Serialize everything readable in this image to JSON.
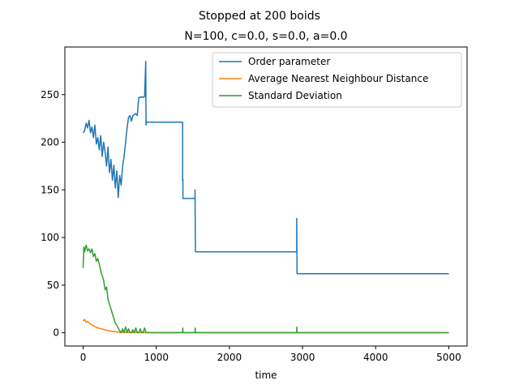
{
  "chart_data": {
    "type": "line",
    "suptitle": "Stopped at 200 boids",
    "title": "N=100, c=0.0, s=0.0, a=0.0",
    "xlabel": "time",
    "ylabel": "",
    "xlim": [
      -250,
      5250
    ],
    "ylim": [
      -14,
      300
    ],
    "xticks": [
      0,
      1000,
      2000,
      3000,
      4000,
      5000
    ],
    "yticks": [
      0,
      50,
      100,
      150,
      200,
      250
    ],
    "grid": false,
    "legend": "upper-right",
    "series": [
      {
        "name": "Order parameter",
        "color": "#1f77b4",
        "x": [
          0,
          20,
          40,
          60,
          80,
          100,
          120,
          140,
          160,
          180,
          200,
          220,
          240,
          260,
          280,
          300,
          320,
          340,
          360,
          380,
          400,
          420,
          440,
          460,
          480,
          500,
          520,
          540,
          560,
          580,
          600,
          620,
          640,
          660,
          680,
          700,
          720,
          740,
          760,
          780,
          800,
          820,
          840,
          855,
          860,
          865,
          870,
          1360,
          1360,
          1365,
          1365,
          1530,
          1530,
          1535,
          1535,
          2920,
          2920,
          2925,
          2925,
          5000
        ],
        "y": [
          210,
          212,
          220,
          215,
          223,
          210,
          216,
          205,
          218,
          198,
          205,
          192,
          207,
          185,
          200,
          190,
          175,
          195,
          168,
          182,
          160,
          176,
          152,
          170,
          142,
          165,
          155,
          175,
          185,
          200,
          215,
          226,
          228,
          222,
          228,
          229,
          230,
          228,
          247,
          247,
          248,
          247,
          248,
          285,
          218,
          222,
          221,
          221,
          160,
          161,
          141,
          141,
          150,
          85,
          85,
          85,
          120,
          62,
          62,
          62
        ]
      },
      {
        "name": "Average Nearest Neighbour Distance",
        "color": "#ff7f0e",
        "x": [
          0,
          20,
          40,
          60,
          80,
          100,
          150,
          200,
          250,
          300,
          350,
          400,
          450,
          500,
          550,
          600,
          800,
          1000,
          2000,
          3000,
          4000,
          5000
        ],
        "y": [
          12,
          14,
          11,
          12,
          10,
          9,
          7,
          5,
          4,
          3,
          2,
          1.5,
          1,
          0.5,
          0.3,
          0.2,
          0.1,
          0.1,
          0.1,
          0.1,
          0.1,
          0.1
        ]
      },
      {
        "name": "Standard Deviation",
        "color": "#2ca02c",
        "x": [
          0,
          10,
          20,
          40,
          60,
          80,
          100,
          120,
          140,
          160,
          180,
          200,
          220,
          240,
          260,
          280,
          300,
          320,
          340,
          360,
          380,
          400,
          420,
          440,
          460,
          480,
          500,
          520,
          540,
          560,
          580,
          600,
          620,
          640,
          660,
          680,
          700,
          720,
          740,
          760,
          780,
          800,
          820,
          840,
          860,
          880,
          1000,
          1360,
          1362,
          1365,
          1500,
          1530,
          1532,
          1535,
          2000,
          2920,
          2922,
          2925,
          3500,
          5000
        ],
        "y": [
          68,
          90,
          85,
          92,
          86,
          88,
          84,
          88,
          80,
          83,
          75,
          78,
          72,
          65,
          60,
          55,
          45,
          48,
          35,
          30,
          25,
          20,
          15,
          10,
          8,
          5,
          2,
          0,
          4,
          0,
          6,
          0,
          4,
          0,
          0,
          3,
          0,
          5,
          0,
          0,
          4,
          0,
          0,
          5,
          0,
          0,
          0,
          0,
          5,
          0,
          0,
          0,
          5,
          0,
          0,
          0,
          6,
          0,
          0,
          0
        ]
      }
    ]
  }
}
